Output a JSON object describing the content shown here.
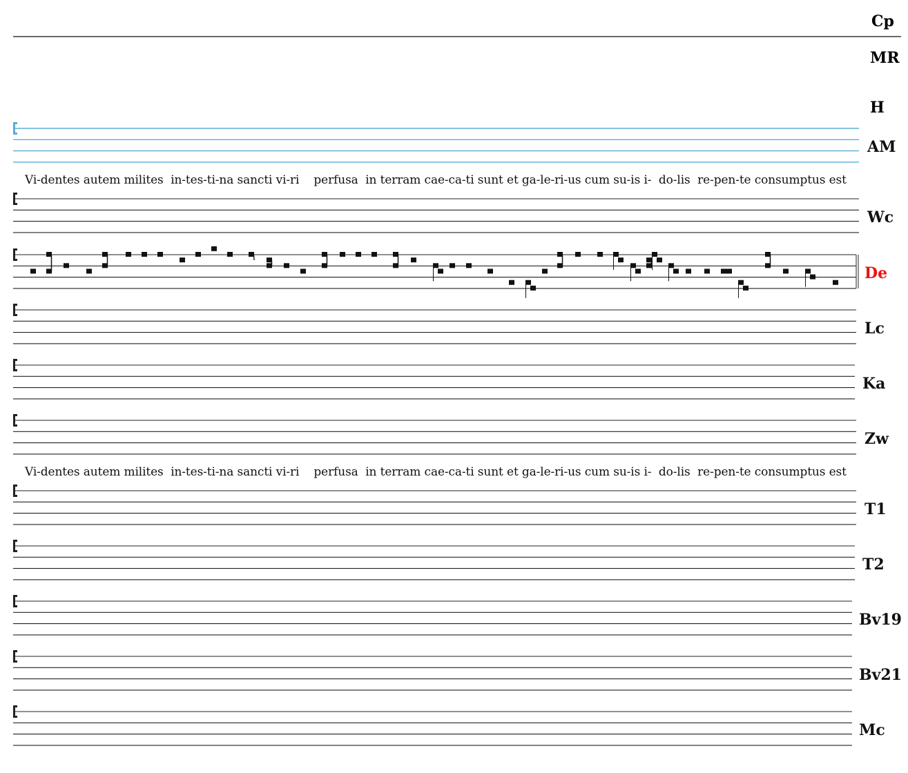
{
  "colors": {
    "staff": "#222222",
    "highlight_staff": "#5aaed4",
    "active_label": "#ee1111",
    "label": "#111111"
  },
  "top_label": "Cp",
  "labels_without_staff": [
    "MR",
    "H"
  ],
  "lyrics": "Vi-dentes autem milites  in-tes-ti-na sancti vi-ri    perfusa  in terram cae-ca-ti sunt et ga-le-ri-us cum su-is i-  do-lis  re-pen-te consumptus est",
  "staves": [
    {
      "label": "AM",
      "highlighted": true
    },
    {
      "label": "Wc"
    },
    {
      "label": "De",
      "active": true
    },
    {
      "label": "Lc"
    },
    {
      "label": "Ka"
    },
    {
      "label": "Zw"
    },
    {
      "label": "T1"
    },
    {
      "label": "T2"
    },
    {
      "label": "Bv19"
    },
    {
      "label": "Bv21"
    },
    {
      "label": "Mc"
    }
  ],
  "clef": "c-clef-icon",
  "de_neumes": [
    {
      "type": "punctum",
      "pitches": [
        3
      ]
    },
    {
      "type": "pes",
      "pitches": [
        3,
        0
      ]
    },
    {
      "type": "punctum",
      "pitches": [
        2
      ]
    },
    {
      "type": "punctum",
      "pitches": [
        3
      ]
    },
    {
      "type": "pes",
      "pitches": [
        2,
        0
      ]
    },
    {
      "type": "punctum",
      "pitches": [
        0
      ]
    },
    {
      "type": "punctum",
      "pitches": [
        0
      ]
    },
    {
      "type": "punctum",
      "pitches": [
        0
      ]
    },
    {
      "type": "punctum",
      "pitches": [
        1
      ]
    },
    {
      "type": "punctum",
      "pitches": [
        0
      ]
    },
    {
      "type": "punctum",
      "pitches": [
        -1
      ]
    },
    {
      "type": "punctum",
      "pitches": [
        0
      ]
    },
    {
      "type": "liquescent",
      "pitches": [
        0
      ]
    },
    {
      "type": "pes",
      "pitches": [
        2,
        1
      ]
    },
    {
      "type": "punctum",
      "pitches": [
        2
      ]
    },
    {
      "type": "punctum",
      "pitches": [
        3
      ]
    },
    {
      "type": "pes",
      "pitches": [
        2,
        0
      ]
    },
    {
      "type": "punctum",
      "pitches": [
        0
      ]
    },
    {
      "type": "punctum",
      "pitches": [
        0
      ]
    },
    {
      "type": "punctum",
      "pitches": [
        0
      ]
    },
    {
      "type": "pes",
      "pitches": [
        2,
        0
      ]
    },
    {
      "type": "punctum",
      "pitches": [
        1
      ]
    },
    {
      "type": "clivis",
      "pitches": [
        2,
        3
      ]
    },
    {
      "type": "punctum",
      "pitches": [
        2
      ]
    },
    {
      "type": "punctum",
      "pitches": [
        2
      ]
    },
    {
      "type": "punctum",
      "pitches": [
        3
      ]
    },
    {
      "type": "punctum",
      "pitches": [
        5
      ]
    },
    {
      "type": "clivis",
      "pitches": [
        5,
        6
      ]
    },
    {
      "type": "punctum",
      "pitches": [
        3
      ]
    },
    {
      "type": "pes",
      "pitches": [
        2,
        0
      ]
    },
    {
      "type": "punctum",
      "pitches": [
        0
      ]
    },
    {
      "type": "punctum",
      "pitches": [
        0
      ]
    },
    {
      "type": "clivis",
      "pitches": [
        0,
        1
      ]
    },
    {
      "type": "clivis",
      "pitches": [
        2,
        3
      ]
    },
    {
      "type": "pes",
      "pitches": [
        2,
        1
      ]
    },
    {
      "type": "clivis",
      "pitches": [
        0,
        1
      ]
    },
    {
      "type": "clivis",
      "pitches": [
        2,
        3
      ]
    },
    {
      "type": "punctum",
      "pitches": [
        3
      ]
    },
    {
      "type": "punctum",
      "pitches": [
        3
      ]
    },
    {
      "type": "punctum",
      "pitches": [
        3
      ]
    },
    {
      "type": "punctum",
      "pitches": [
        3
      ]
    },
    {
      "type": "clivis",
      "pitches": [
        5,
        6
      ]
    },
    {
      "type": "pes",
      "pitches": [
        2,
        0
      ]
    },
    {
      "type": "punctum",
      "pitches": [
        3
      ]
    },
    {
      "type": "clivis",
      "pitches": [
        3,
        4
      ]
    },
    {
      "type": "punctum",
      "pitches": [
        5
      ]
    }
  ]
}
